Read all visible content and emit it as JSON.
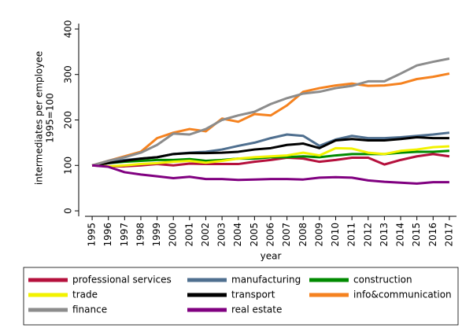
{
  "chart_data": {
    "type": "line",
    "ylabel": [
      "intermediates per employee",
      "1995=100"
    ],
    "xlabel": "year",
    "x": [
      1995,
      1996,
      1997,
      1998,
      1999,
      2000,
      2001,
      2002,
      2003,
      2004,
      2005,
      2006,
      2007,
      2008,
      2009,
      2010,
      2011,
      2012,
      2013,
      2014,
      2015,
      2016,
      2017
    ],
    "xlim": [
      1994.56,
      2017.44
    ],
    "xticks": [
      1995,
      1996,
      1997,
      1998,
      1999,
      2000,
      2001,
      2002,
      2003,
      2004,
      2005,
      2006,
      2007,
      2008,
      2009,
      2010,
      2011,
      2012,
      2013,
      2014,
      2015,
      2016,
      2017
    ],
    "ylim": [
      -12,
      412
    ],
    "yticks": [
      0,
      100,
      200,
      300,
      400
    ],
    "grid": false,
    "legend": "bottom",
    "series": [
      {
        "name": "professional services",
        "color": "#b5103c",
        "values": [
          100,
          98,
          98,
          100,
          103,
          100,
          104,
          103,
          103,
          103,
          108,
          112,
          117,
          115,
          108,
          112,
          117,
          117,
          102,
          112,
          120,
          125,
          120
        ]
      },
      {
        "name": "manufacturing",
        "color": "#4f6f8f",
        "values": [
          100,
          108,
          112,
          115,
          118,
          125,
          128,
          130,
          135,
          143,
          150,
          160,
          168,
          165,
          143,
          157,
          165,
          160,
          160,
          162,
          165,
          168,
          172
        ]
      },
      {
        "name": "construction",
        "color": "#008a00",
        "values": [
          100,
          105,
          108,
          110,
          112,
          112,
          114,
          110,
          112,
          115,
          115,
          118,
          118,
          120,
          118,
          122,
          125,
          125,
          125,
          128,
          130,
          130,
          132
        ]
      },
      {
        "name": "trade",
        "color": "#f2f200",
        "values": [
          100,
          98,
          100,
          103,
          105,
          108,
          110,
          106,
          110,
          115,
          118,
          120,
          122,
          128,
          122,
          138,
          137,
          128,
          125,
          132,
          135,
          140,
          142
        ]
      },
      {
        "name": "transport",
        "color": "#000000",
        "values": [
          100,
          105,
          110,
          115,
          118,
          125,
          127,
          127,
          128,
          130,
          135,
          138,
          145,
          148,
          138,
          155,
          158,
          155,
          155,
          158,
          162,
          160,
          160
        ]
      },
      {
        "name": "info&communication",
        "color": "#f5821f",
        "values": [
          100,
          110,
          120,
          130,
          160,
          172,
          180,
          175,
          203,
          196,
          213,
          210,
          232,
          262,
          270,
          276,
          280,
          275,
          276,
          280,
          290,
          295,
          302
        ]
      },
      {
        "name": "finance",
        "color": "#8c8c8c",
        "values": [
          100,
          110,
          118,
          128,
          145,
          170,
          168,
          180,
          200,
          210,
          218,
          235,
          248,
          258,
          262,
          270,
          275,
          285,
          285,
          302,
          320,
          328,
          335
        ]
      },
      {
        "name": "real estate",
        "color": "#800080",
        "values": [
          100,
          97,
          85,
          80,
          76,
          72,
          75,
          70,
          70,
          68,
          69,
          70,
          70,
          69,
          73,
          74,
          73,
          67,
          64,
          62,
          60,
          63,
          63
        ]
      }
    ]
  }
}
